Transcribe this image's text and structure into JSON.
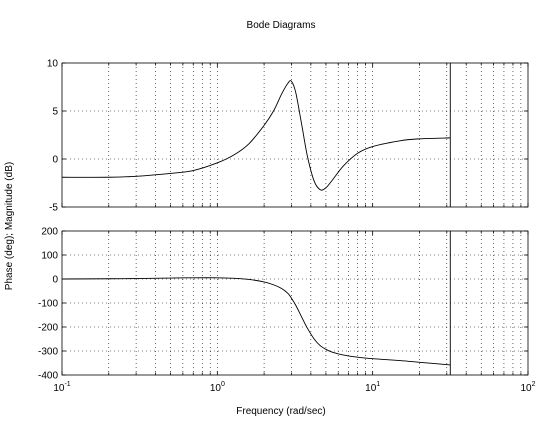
{
  "chart_data": {
    "type": "line",
    "title": "Bode Diagrams",
    "xlabel": "Frequency (rad/sec)",
    "ylabel": "Phase (deg); Magnitude (dB)",
    "xscale": "log",
    "xlim": [
      0.1,
      100
    ],
    "x_tick_labels": [
      {
        "base": "10",
        "exp": "-1"
      },
      {
        "base": "10",
        "exp": "0"
      },
      {
        "base": "10",
        "exp": "1"
      },
      {
        "base": "10",
        "exp": "2"
      }
    ],
    "grid": true,
    "vertical_marker_x": 31.6,
    "panels": [
      {
        "name": "magnitude",
        "ylim": [
          -5,
          10
        ],
        "yticks": [
          "-5",
          "0",
          "5",
          "10"
        ],
        "series": [
          {
            "x": [
              0.1,
              0.2,
              0.3,
              0.5,
              0.7,
              1.0,
              1.3,
              1.6,
              2.0,
              2.3,
              2.6,
              2.85,
              3.0,
              3.2,
              3.5,
              3.8,
              4.2,
              4.6,
              5.0,
              5.5,
              6.5,
              8.0,
              10.0,
              15.0,
              20.0,
              31.6
            ],
            "y": [
              -1.9,
              -1.9,
              -1.8,
              -1.5,
              -1.2,
              -0.4,
              0.5,
              1.6,
              3.5,
              5.0,
              6.8,
              7.9,
              8.1,
              6.9,
              3.5,
              0.3,
              -2.3,
              -3.2,
              -3.0,
              -2.2,
              -0.7,
              0.6,
              1.3,
              1.9,
              2.1,
              2.2
            ]
          }
        ]
      },
      {
        "name": "phase",
        "ylim": [
          -400,
          200
        ],
        "yticks": [
          "-400",
          "-300",
          "-200",
          "-100",
          "0",
          "100",
          "200"
        ],
        "series": [
          {
            "x": [
              0.1,
              0.2,
              0.3,
              0.5,
              0.7,
              1.0,
              1.3,
              1.6,
              2.0,
              2.3,
              2.6,
              2.85,
              3.0,
              3.2,
              3.5,
              3.8,
              4.2,
              4.6,
              5.0,
              5.5,
              6.5,
              8.0,
              10.0,
              15.0,
              20.0,
              31.6
            ],
            "y": [
              0,
              1,
              2,
              4,
              5,
              5,
              3,
              -2,
              -12,
              -24,
              -40,
              -60,
              -80,
              -110,
              -160,
              -205,
              -250,
              -278,
              -293,
              -305,
              -317,
              -326,
              -332,
              -340,
              -347,
              -358
            ]
          }
        ]
      }
    ]
  }
}
